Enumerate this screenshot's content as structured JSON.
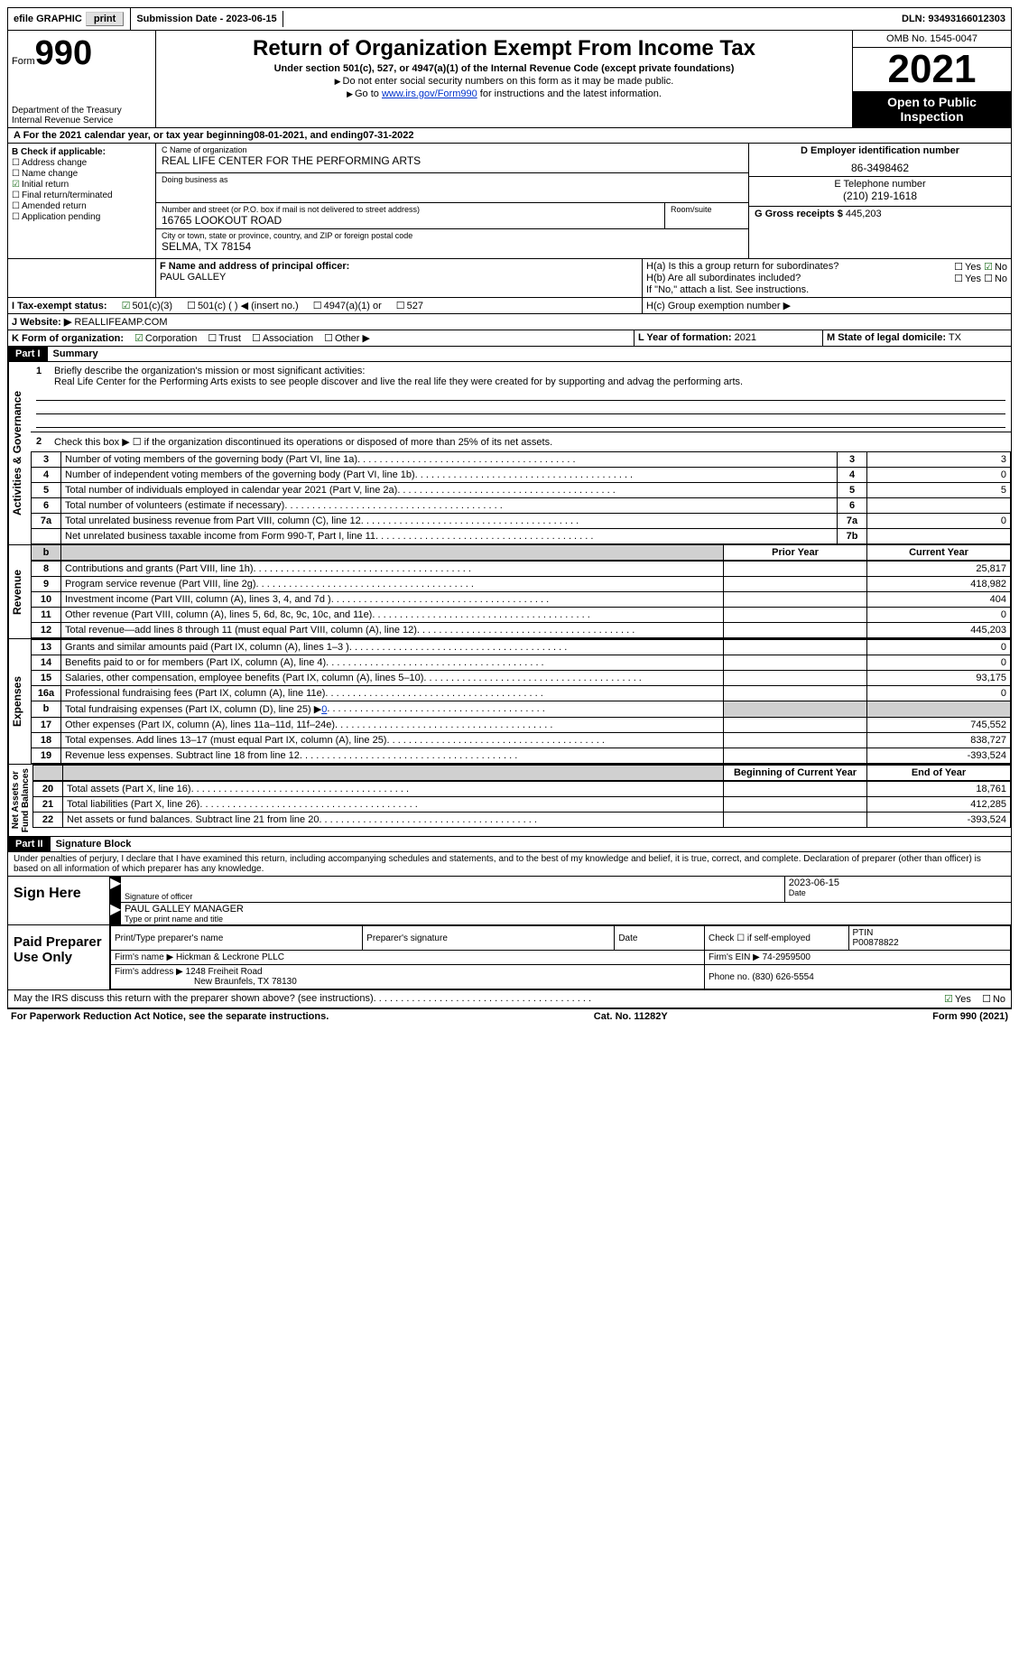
{
  "top": {
    "efile": "efile GRAPHIC",
    "print": "print",
    "submission_label": "Submission Date - ",
    "submission_date": "2023-06-15",
    "dln_label": "DLN: ",
    "dln": "93493166012303"
  },
  "header": {
    "form_prefix": "Form",
    "form_num": "990",
    "title": "Return of Organization Exempt From Income Tax",
    "subtitle": "Under section 501(c), 527, or 4947(a)(1) of the Internal Revenue Code (except private foundations)",
    "note1": "Do not enter social security numbers on this form as it may be made public.",
    "note2_prefix": "Go to ",
    "note2_link": "www.irs.gov/Form990",
    "note2_suffix": " for instructions and the latest information.",
    "dept": "Department of the Treasury",
    "irs": "Internal Revenue Service",
    "omb": "OMB No. 1545-0047",
    "year": "2021",
    "open": "Open to Public Inspection"
  },
  "section_a": {
    "text_prefix": "A For the 2021 calendar year, or tax year beginning ",
    "begin": "08-01-2021",
    "mid": ", and ending ",
    "end": "07-31-2022"
  },
  "section_b": {
    "label": "B Check if applicable:",
    "addr": "Address change",
    "name": "Name change",
    "initial": "Initial return",
    "final": "Final return/terminated",
    "amended": "Amended return",
    "app": "Application pending"
  },
  "section_c": {
    "name_label": "C Name of organization",
    "name": "REAL LIFE CENTER FOR THE PERFORMING ARTS",
    "dba_label": "Doing business as",
    "addr_label": "Number and street (or P.O. box if mail is not delivered to street address)",
    "room_label": "Room/suite",
    "addr": "16765 LOOKOUT ROAD",
    "city_label": "City or town, state or province, country, and ZIP or foreign postal code",
    "city": "SELMA, TX  78154"
  },
  "section_d": {
    "label": "D Employer identification number",
    "value": "86-3498462"
  },
  "section_e": {
    "label": "E Telephone number",
    "value": "(210) 219-1618"
  },
  "section_g": {
    "label": "G Gross receipts $",
    "value": "445,203"
  },
  "section_f": {
    "label": "F Name and address of principal officer:",
    "value": "PAUL GALLEY"
  },
  "section_h": {
    "ha": "H(a)  Is this a group return for subordinates?",
    "hb": "H(b)  Are all subordinates included?",
    "hb_note": "If \"No,\" attach a list. See instructions.",
    "hc": "H(c)  Group exemption number ▶",
    "yes": "Yes",
    "no": "No"
  },
  "section_i": {
    "label": "I  Tax-exempt status:",
    "opt1": "501(c)(3)",
    "opt2": "501(c) (  ) ◀ (insert no.)",
    "opt3": "4947(a)(1) or",
    "opt4": "527"
  },
  "section_j": {
    "label": "J  Website: ▶",
    "value": "REALLIFEAMP.COM"
  },
  "section_k": {
    "label": "K Form of organization:",
    "corp": "Corporation",
    "trust": "Trust",
    "assoc": "Association",
    "other": "Other ▶"
  },
  "section_l": {
    "label": "L Year of formation:",
    "value": "2021"
  },
  "section_m": {
    "label": "M State of legal domicile:",
    "value": "TX"
  },
  "part1": {
    "label": "Part I",
    "title": "Summary",
    "briefly_label": "Briefly describe the organization's mission or most significant activities:",
    "briefly_text": "Real Life Center for the Performing Arts exists to see people discover and live the real life they were created for by supporting and advag the performing arts.",
    "line2": "Check this box ▶ ☐ if the organization discontinued its operations or disposed of more than 25% of its net assets.",
    "lines": [
      {
        "n": "3",
        "t": "Number of voting members of the governing body (Part VI, line 1a)",
        "box": "3",
        "v": "3"
      },
      {
        "n": "4",
        "t": "Number of independent voting members of the governing body (Part VI, line 1b)",
        "box": "4",
        "v": "0"
      },
      {
        "n": "5",
        "t": "Total number of individuals employed in calendar year 2021 (Part V, line 2a)",
        "box": "5",
        "v": "5"
      },
      {
        "n": "6",
        "t": "Total number of volunteers (estimate if necessary)",
        "box": "6",
        "v": ""
      },
      {
        "n": "7a",
        "t": "Total unrelated business revenue from Part VIII, column (C), line 12",
        "box": "7a",
        "v": "0"
      },
      {
        "n": "",
        "t": "Net unrelated business taxable income from Form 990-T, Part I, line 11",
        "box": "7b",
        "v": ""
      }
    ],
    "prior": "Prior Year",
    "current": "Current Year",
    "revenue_label": "Revenue",
    "revenue_lines": [
      {
        "n": "8",
        "t": "Contributions and grants (Part VIII, line 1h)",
        "p": "",
        "c": "25,817"
      },
      {
        "n": "9",
        "t": "Program service revenue (Part VIII, line 2g)",
        "p": "",
        "c": "418,982"
      },
      {
        "n": "10",
        "t": "Investment income (Part VIII, column (A), lines 3, 4, and 7d )",
        "p": "",
        "c": "404"
      },
      {
        "n": "11",
        "t": "Other revenue (Part VIII, column (A), lines 5, 6d, 8c, 9c, 10c, and 11e)",
        "p": "",
        "c": "0"
      },
      {
        "n": "12",
        "t": "Total revenue—add lines 8 through 11 (must equal Part VIII, column (A), line 12)",
        "p": "",
        "c": "445,203"
      }
    ],
    "expenses_label": "Expenses",
    "expenses_lines": [
      {
        "n": "13",
        "t": "Grants and similar amounts paid (Part IX, column (A), lines 1–3 )",
        "p": "",
        "c": "0"
      },
      {
        "n": "14",
        "t": "Benefits paid to or for members (Part IX, column (A), line 4)",
        "p": "",
        "c": "0"
      },
      {
        "n": "15",
        "t": "Salaries, other compensation, employee benefits (Part IX, column (A), lines 5–10)",
        "p": "",
        "c": "93,175"
      },
      {
        "n": "16a",
        "t": "Professional fundraising fees (Part IX, column (A), line 11e)",
        "p": "",
        "c": "0"
      },
      {
        "n": "b",
        "t": "Total fundraising expenses (Part IX, column (D), line 25) ▶",
        "p": "shaded",
        "c": "shaded",
        "extra": "0"
      },
      {
        "n": "17",
        "t": "Other expenses (Part IX, column (A), lines 11a–11d, 11f–24e)",
        "p": "",
        "c": "745,552"
      },
      {
        "n": "18",
        "t": "Total expenses. Add lines 13–17 (must equal Part IX, column (A), line 25)",
        "p": "",
        "c": "838,727"
      },
      {
        "n": "19",
        "t": "Revenue less expenses. Subtract line 18 from line 12",
        "p": "",
        "c": "-393,524"
      }
    ],
    "netassets_label": "Net Assets or Fund Balances",
    "begin_year": "Beginning of Current Year",
    "end_year": "End of Year",
    "net_lines": [
      {
        "n": "20",
        "t": "Total assets (Part X, line 16)",
        "p": "",
        "c": "18,761"
      },
      {
        "n": "21",
        "t": "Total liabilities (Part X, line 26)",
        "p": "",
        "c": "412,285"
      },
      {
        "n": "22",
        "t": "Net assets or fund balances. Subtract line 21 from line 20",
        "p": "",
        "c": "-393,524"
      }
    ]
  },
  "part2": {
    "label": "Part II",
    "title": "Signature Block",
    "penalties": "Under penalties of perjury, I declare that I have examined this return, including accompanying schedules and statements, and to the best of my knowledge and belief, it is true, correct, and complete. Declaration of preparer (other than officer) is based on all information of which preparer has any knowledge.",
    "sign_here": "Sign Here",
    "sig_officer": "Signature of officer",
    "date_label": "Date",
    "sig_date": "2023-06-15",
    "name_title": "PAUL GALLEY  MANAGER",
    "type_name": "Type or print name and title",
    "paid": "Paid Preparer Use Only",
    "prep_name_label": "Print/Type preparer's name",
    "prep_sig_label": "Preparer's signature",
    "check_self": "Check ☐ if self-employed",
    "ptin_label": "PTIN",
    "ptin": "P00878822",
    "firm_name_label": "Firm's name  ▶",
    "firm_name": "Hickman & Leckrone PLLC",
    "firm_ein_label": "Firm's EIN ▶",
    "firm_ein": "74-2959500",
    "firm_addr_label": "Firm's address ▶",
    "firm_addr1": "1248 Freiheit Road",
    "firm_addr2": "New Braunfels, TX  78130",
    "phone_label": "Phone no.",
    "phone": "(830) 626-5554",
    "may_irs": "May the IRS discuss this return with the preparer shown above? (see instructions)"
  },
  "footer": {
    "notice": "For Paperwork Reduction Act Notice, see the separate instructions.",
    "cat": "Cat. No. 11282Y",
    "form": "Form 990 (2021)"
  }
}
